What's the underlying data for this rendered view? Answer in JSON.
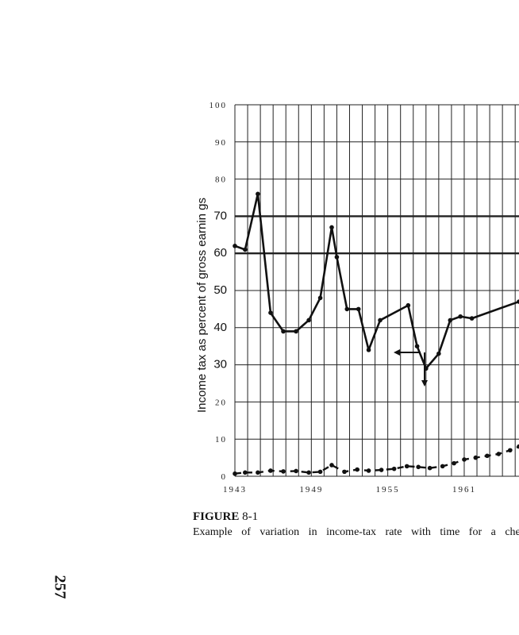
{
  "chart_data": {
    "type": "line",
    "ylabel": "Income tax as percent of gross earnin  gs",
    "ylim": [
      0,
      100
    ],
    "y_ticks": [
      "100",
      "90",
      "80",
      "70",
      "60",
      "50",
      "40",
      "30",
      "20",
      "10",
      "0"
    ],
    "x_ticks": [
      {
        "label": "1943",
        "x": 1943
      },
      {
        "label": "1949",
        "x": 1949
      },
      {
        "label": "1955",
        "x": 1955
      },
      {
        "label": "1961",
        "x": 1961
      }
    ],
    "xlim": [
      1943,
      1965.3
    ],
    "grid": true,
    "series": [
      {
        "style": "solid",
        "x": [
          1943,
          1943.8,
          1944.8,
          1945.8,
          1946.8,
          1947.8,
          1948.8,
          1949.7,
          1950.6,
          1951,
          1951.8,
          1952.7,
          1953.5,
          1954.4,
          1956.6,
          1957.3,
          1958,
          1959,
          1959.9,
          1960.7,
          1961.6,
          1965.3
        ],
        "y": [
          62,
          61,
          76,
          44,
          39,
          39,
          42,
          48,
          67,
          59,
          45,
          45,
          34,
          42,
          46,
          35,
          29,
          33,
          42,
          43,
          42.5,
          47
        ]
      },
      {
        "style": "dashed",
        "x": [
          1943,
          1943.8,
          1944.8,
          1945.8,
          1946.8,
          1947.8,
          1948.8,
          1949.7,
          1950.6,
          1951.6,
          1952.6,
          1953.5,
          1954.5,
          1955.5,
          1956.5,
          1957.4,
          1958.3,
          1959.3,
          1960.2,
          1961,
          1961.9,
          1962.8,
          1963.7,
          1964.6,
          1965.3
        ],
        "y": [
          0.7,
          1.0,
          1.0,
          1.5,
          1.3,
          1.4,
          1.0,
          1.2,
          3.0,
          1.2,
          1.8,
          1.5,
          1.7,
          2.0,
          2.7,
          2.5,
          2.2,
          2.7,
          3.5,
          4.5,
          5.0,
          5.5,
          6.0,
          7.0,
          8.0
        ]
      }
    ]
  },
  "caption": {
    "label": "FIGURE",
    "number": "8-1",
    "text": "Example of variation in income-tax rate with time for a chen"
  },
  "page_number": "257"
}
